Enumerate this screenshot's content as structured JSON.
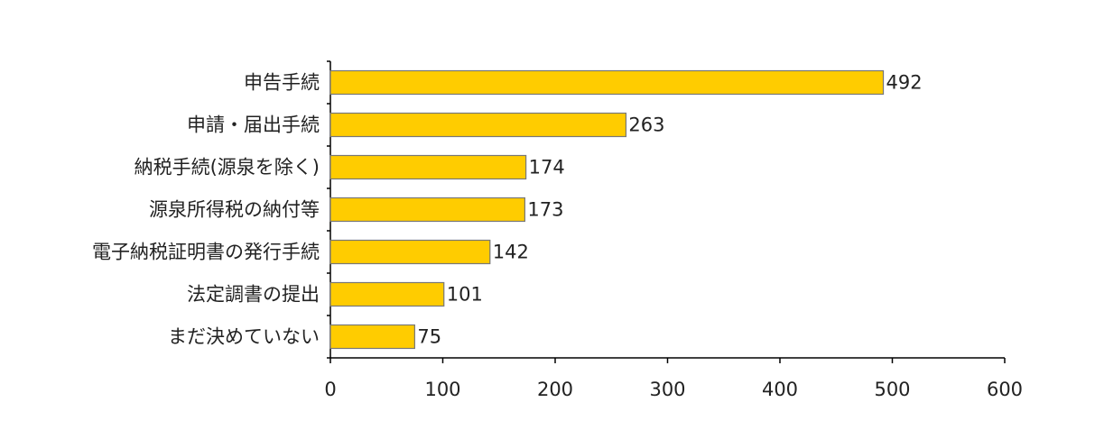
{
  "chart_data": {
    "type": "bar",
    "orientation": "horizontal",
    "categories": [
      "申告手続",
      "申請・届出手続",
      "納税手続(源泉を除く)",
      "源泉所得税の納付等",
      "電子納税証明書の発行手続",
      "法定調書の提出",
      "まだ決めていない"
    ],
    "values": [
      492,
      263,
      174,
      173,
      142,
      101,
      75
    ],
    "color": "#ffcc00",
    "xlim": [
      0,
      600
    ],
    "xticks": [
      0,
      100,
      200,
      300,
      400,
      500,
      600
    ],
    "grid": false
  }
}
